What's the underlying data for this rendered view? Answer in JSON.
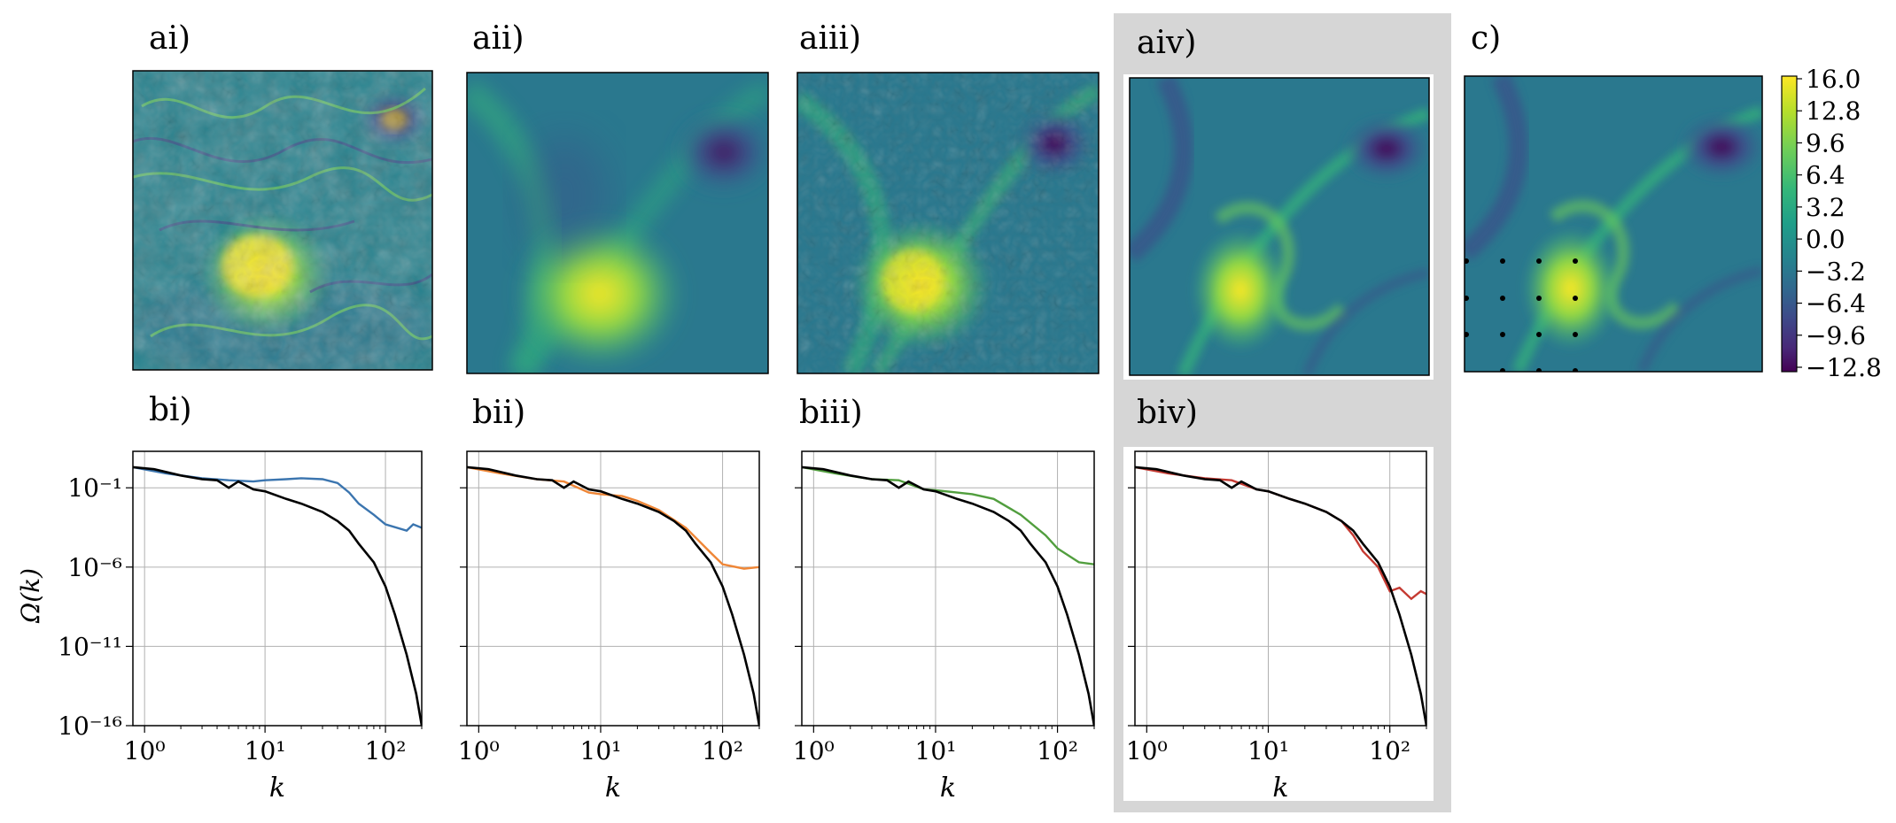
{
  "panels_top": [
    {
      "id": "ai",
      "label": "ai)"
    },
    {
      "id": "aii",
      "label": "aii)"
    },
    {
      "id": "aiii",
      "label": "aiii)"
    },
    {
      "id": "aiv",
      "label": "aiv)"
    },
    {
      "id": "c",
      "label": "c)"
    }
  ],
  "colorbar": {
    "ticks": [
      "16.0",
      "12.8",
      "9.6",
      "6.4",
      "3.2",
      "0.0",
      "−3.2",
      "−6.4",
      "−9.6",
      "−12.8"
    ],
    "colors": [
      "#fde725",
      "#b5de2b",
      "#6ece58",
      "#35b779",
      "#1f9e89",
      "#26828e",
      "#31688e",
      "#3e4989",
      "#482878",
      "#440154"
    ]
  },
  "chart_data": {
    "type": "line",
    "ylabel": "Ω(k)",
    "xlabel": "k",
    "xscale": "log",
    "yscale": "log",
    "xlim": [
      0.8,
      200
    ],
    "ylim": [
      1e-16,
      20
    ],
    "x_ticks": [
      1,
      10,
      100
    ],
    "x_tick_labels": [
      "10⁰",
      "10¹",
      "10²"
    ],
    "y_ticks": [
      0.1,
      1e-06,
      1e-11,
      1e-16
    ],
    "y_tick_labels": [
      "10⁻¹",
      "10⁻⁶",
      "10⁻¹¹",
      "10⁻¹⁶"
    ],
    "reference": {
      "name": "reference",
      "color": "#000000",
      "x": [
        0.8,
        1.2,
        2,
        3,
        4,
        5,
        6,
        8,
        10,
        15,
        20,
        30,
        40,
        50,
        60,
        80,
        100,
        120,
        150,
        180,
        200
      ],
      "y": [
        2,
        1.5,
        0.6,
        0.35,
        0.3,
        0.1,
        0.25,
        0.08,
        0.06,
        0.02,
        0.01,
        0.003,
        0.0008,
        0.0002,
        3e-05,
        2e-06,
        6e-08,
        1e-09,
        3e-12,
        1e-14,
        1e-16
      ]
    },
    "panels": [
      {
        "id": "bi",
        "label": "bi)",
        "color": "#3b75af",
        "x": [
          0.8,
          1.5,
          3,
          5,
          8,
          10,
          15,
          20,
          30,
          40,
          50,
          60,
          80,
          100,
          150,
          170,
          200
        ],
        "y": [
          2,
          0.8,
          0.4,
          0.3,
          0.25,
          0.3,
          0.35,
          0.4,
          0.35,
          0.2,
          0.05,
          0.01,
          0.002,
          0.0005,
          0.0002,
          0.0005,
          0.0003
        ]
      },
      {
        "id": "bii",
        "label": "bii)",
        "color": "#ef8636",
        "x": [
          0.8,
          1.5,
          3,
          5,
          8,
          10,
          15,
          20,
          30,
          50,
          80,
          100,
          150,
          200
        ],
        "y": [
          2,
          0.8,
          0.35,
          0.25,
          0.05,
          0.04,
          0.03,
          0.015,
          0.004,
          0.0003,
          8e-06,
          1.5e-06,
          8e-07,
          1e-06
        ]
      },
      {
        "id": "biii",
        "label": "biii)",
        "color": "#519e3e",
        "x": [
          0.8,
          1.5,
          3,
          5,
          8,
          10,
          15,
          20,
          30,
          50,
          80,
          100,
          150,
          200
        ],
        "y": [
          2,
          0.8,
          0.35,
          0.3,
          0.08,
          0.07,
          0.05,
          0.04,
          0.02,
          0.002,
          0.0001,
          1.5e-05,
          2e-06,
          1.5e-06
        ]
      },
      {
        "id": "biv",
        "label": "biv)",
        "color": "#c53a32",
        "x": [
          0.8,
          1.5,
          3,
          5,
          8,
          10,
          15,
          20,
          30,
          40,
          50,
          60,
          70,
          80,
          100,
          120,
          150,
          180,
          200
        ],
        "y": [
          2,
          0.8,
          0.4,
          0.3,
          0.08,
          0.06,
          0.02,
          0.01,
          0.003,
          0.0008,
          0.0001,
          1e-05,
          3e-06,
          1e-06,
          3e-08,
          5e-08,
          1e-08,
          3e-08,
          2e-08
        ]
      }
    ]
  }
}
